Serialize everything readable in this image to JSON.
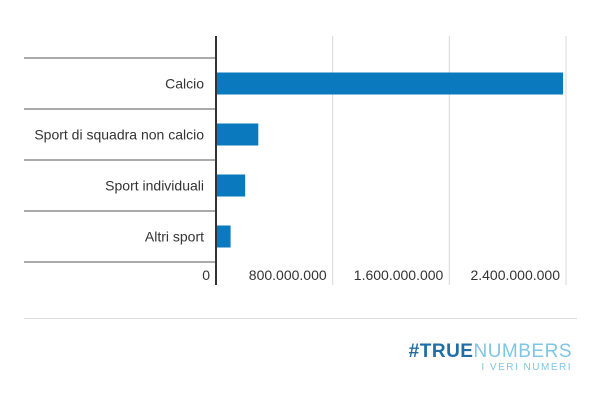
{
  "chart_data": {
    "type": "bar",
    "orientation": "horizontal",
    "categories": [
      "Calcio",
      "Sport di squadra non calcio",
      "Sport individuali",
      "Altri sport"
    ],
    "values": [
      2380000000,
      290000000,
      200000000,
      100000000
    ],
    "xlim": [
      0,
      2400000000
    ],
    "ticks": [
      0,
      800000000,
      1600000000,
      2400000000
    ],
    "tick_labels": [
      "0",
      "800.000.000",
      "1.600.000.000",
      "2.400.000.000"
    ],
    "title": "",
    "xlabel": "",
    "ylabel": "",
    "grid": true,
    "bar_color": "#0a79bd"
  },
  "logo": {
    "hash": "#",
    "part1": "TRUE",
    "part2": "NUMBERS",
    "subtitle": "I VERI NUMERI"
  }
}
